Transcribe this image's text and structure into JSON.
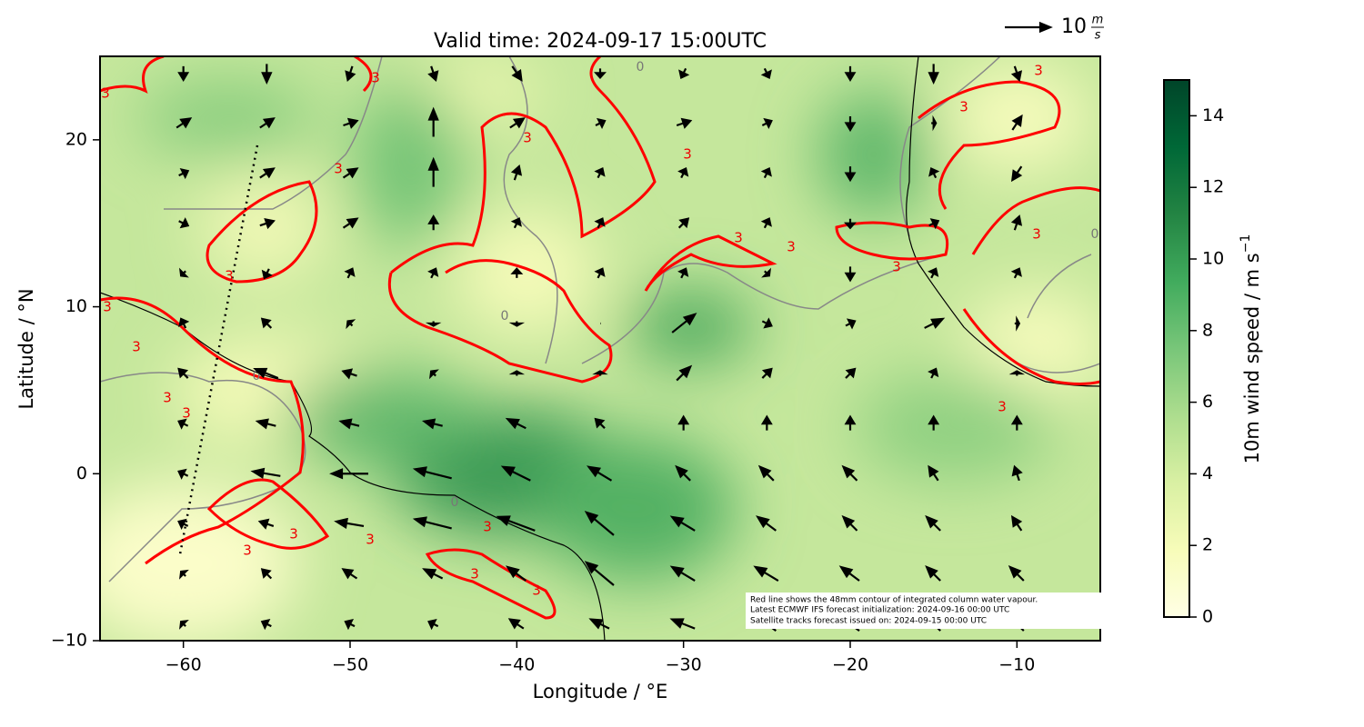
{
  "chart_data": {
    "type": "quiver",
    "title": "Valid time: 2024-09-17 15:00UTC",
    "xlabel": "Longitude / °E",
    "ylabel": "Latitude / °N",
    "xlim": [
      -65,
      -5
    ],
    "ylim": [
      -10,
      25
    ],
    "xticks": [
      {
        "value": -60,
        "label": "−60"
      },
      {
        "value": -50,
        "label": "−50"
      },
      {
        "value": -40,
        "label": "−40"
      },
      {
        "value": -30,
        "label": "−30"
      },
      {
        "value": -20,
        "label": "−20"
      },
      {
        "value": -10,
        "label": "−10"
      }
    ],
    "yticks": [
      {
        "value": -10,
        "label": "−10"
      },
      0,
      10,
      20
    ],
    "colorbar": {
      "label": "10m wind speed / m s",
      "label_sup": "−1",
      "lim": [
        0,
        15
      ],
      "ticks": [
        0,
        2,
        4,
        6,
        8,
        10,
        12,
        14
      ],
      "colors": [
        "#ffffe5",
        "#f7fcb9",
        "#d9f0a3",
        "#addd8e",
        "#78c679",
        "#41ab5d",
        "#238443",
        "#006837",
        "#004529"
      ]
    },
    "reference_arrow": {
      "value": 10,
      "unit_num": "m",
      "unit_den": "s"
    },
    "contour_label": "3",
    "grey_contour_label": "0",
    "notes": [
      "Red line shows the 48mm contour of integrated column water vapour.",
      "Latest ECMWF IFS forecast initialization: 2024-09-16 00:00 UTC",
      "Satellite tracks forecast issued on: 2024-09-15 00:00 UTC"
    ],
    "wind": {
      "lon": [
        -65,
        -60,
        -55,
        -50,
        -45,
        -40,
        -35,
        -30,
        -25,
        -20,
        -15,
        -10,
        -5
      ],
      "lat": [
        24,
        21,
        18,
        15,
        12,
        9,
        6,
        3,
        0,
        -3,
        -6,
        -9
      ],
      "u": [
        [
          2,
          0,
          0,
          -1,
          1,
          2,
          0,
          -1,
          1,
          0,
          0,
          1,
          0
        ],
        [
          3,
          3,
          3,
          3,
          0,
          3,
          2,
          3,
          2,
          0,
          1,
          2,
          2
        ],
        [
          2,
          2,
          3,
          3,
          0,
          1,
          1,
          1,
          1,
          0,
          -1,
          -2,
          1
        ],
        [
          2,
          2,
          3,
          3,
          0,
          1,
          1,
          2,
          1,
          0,
          2,
          1,
          1
        ],
        [
          -2,
          -1,
          -1,
          1,
          1,
          0,
          1,
          1,
          1,
          0,
          1,
          1,
          1
        ],
        [
          -1,
          -1,
          -2,
          -1,
          0,
          0,
          0,
          5,
          2,
          2,
          4,
          1,
          1
        ],
        [
          -1,
          -2,
          -5,
          -3,
          -1,
          0,
          0,
          3,
          2,
          2,
          1,
          0,
          0
        ],
        [
          -1,
          -2,
          -4,
          -4,
          -4,
          -4,
          -2,
          0,
          0,
          0,
          0,
          0,
          0
        ],
        [
          -1,
          -2,
          -6,
          -8,
          -8,
          -6,
          -5,
          -3,
          -3,
          -3,
          -2,
          -1,
          0
        ],
        [
          -1,
          -2,
          -3,
          -6,
          -8,
          -8,
          -6,
          -5,
          -4,
          -3,
          -3,
          -2,
          0
        ],
        [
          -1,
          -1,
          -2,
          -3,
          -4,
          -4,
          -6,
          -5,
          -5,
          -4,
          -3,
          -3,
          -2
        ],
        [
          -1,
          -1,
          -2,
          -2,
          -2,
          -3,
          -4,
          -5,
          -4,
          -4,
          -3,
          -3,
          -2
        ]
      ],
      "v": [
        [
          0,
          -3,
          -4,
          -3,
          -3,
          -3,
          -2,
          -2,
          -2,
          -3,
          -4,
          -3,
          -2
        ],
        [
          1,
          2,
          2,
          1,
          6,
          2,
          1,
          1,
          1,
          -3,
          0,
          3,
          0
        ],
        [
          1,
          1,
          2,
          2,
          6,
          3,
          2,
          2,
          2,
          -3,
          2,
          -3,
          2
        ],
        [
          -1,
          -1,
          1,
          2,
          3,
          2,
          2,
          2,
          2,
          -2,
          1,
          3,
          2
        ],
        [
          -1,
          -1,
          -2,
          2,
          2,
          2,
          2,
          2,
          -1,
          -3,
          2,
          2,
          2
        ],
        [
          0,
          2,
          2,
          1,
          -1,
          -1,
          0,
          4,
          -1,
          1,
          2,
          0,
          0
        ],
        [
          0,
          2,
          2,
          1,
          1,
          1,
          1,
          3,
          2,
          2,
          2,
          1,
          1
        ],
        [
          0,
          1,
          1,
          1,
          1,
          2,
          2,
          3,
          3,
          3,
          3,
          3,
          3
        ],
        [
          0,
          1,
          1,
          0,
          2,
          3,
          3,
          3,
          3,
          3,
          3,
          3,
          3
        ],
        [
          0,
          1,
          1,
          1,
          2,
          3,
          5,
          3,
          3,
          3,
          3,
          3,
          3
        ],
        [
          0,
          1,
          2,
          2,
          2,
          3,
          5,
          3,
          3,
          3,
          3,
          3,
          3
        ],
        [
          0,
          1,
          1,
          1,
          1,
          2,
          2,
          2,
          3,
          3,
          3,
          3,
          3
        ]
      ]
    }
  }
}
